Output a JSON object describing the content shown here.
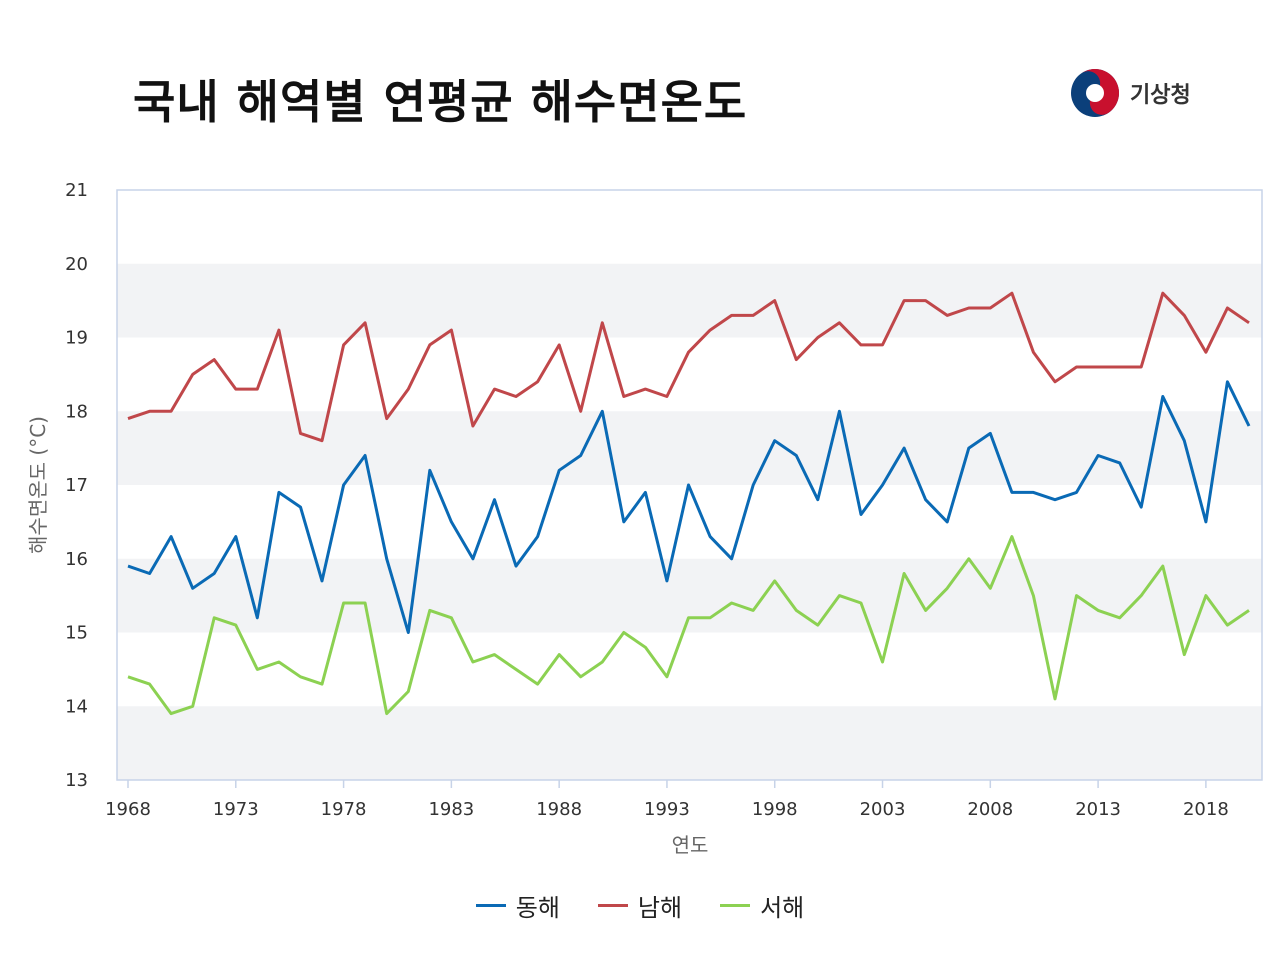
{
  "header": {
    "title": "국내 해역별 연평균 해수면온도",
    "logo_text": "기상청"
  },
  "chart_data": {
    "type": "line",
    "title": "국내 해역별 연평균 해수면온도",
    "xlabel": "연도",
    "ylabel": "해수면온도 (°C)",
    "ylim": [
      13,
      21
    ],
    "yticks": [
      13,
      14,
      15,
      16,
      17,
      18,
      19,
      20,
      21
    ],
    "xticks": [
      1968,
      1973,
      1978,
      1983,
      1988,
      1993,
      1998,
      2003,
      2008,
      2013,
      2018
    ],
    "x": [
      1968,
      1969,
      1970,
      1971,
      1972,
      1973,
      1974,
      1975,
      1976,
      1977,
      1978,
      1979,
      1980,
      1981,
      1982,
      1983,
      1984,
      1985,
      1986,
      1987,
      1988,
      1989,
      1990,
      1991,
      1992,
      1993,
      1994,
      1995,
      1996,
      1997,
      1998,
      1999,
      2000,
      2001,
      2002,
      2003,
      2004,
      2005,
      2006,
      2007,
      2008,
      2009,
      2010,
      2011,
      2012,
      2013,
      2014,
      2015,
      2016,
      2017,
      2018,
      2019,
      2020
    ],
    "legend_position": "bottom",
    "series": [
      {
        "name": "동해",
        "color": "#0a6ab5",
        "values": [
          15.9,
          15.8,
          16.3,
          15.6,
          15.8,
          16.3,
          15.2,
          16.9,
          16.7,
          15.7,
          17.0,
          17.4,
          16.0,
          15.0,
          17.2,
          16.5,
          16.0,
          16.8,
          15.9,
          16.3,
          17.2,
          17.4,
          18.0,
          16.5,
          16.9,
          15.7,
          17.0,
          16.3,
          16.0,
          17.0,
          17.6,
          17.4,
          16.8,
          18.0,
          16.6,
          17.0,
          17.5,
          16.8,
          16.5,
          17.5,
          17.7,
          16.9,
          16.9,
          16.8,
          16.9,
          17.4,
          17.3,
          16.7,
          18.2,
          17.6,
          16.5,
          18.4,
          17.8
        ]
      },
      {
        "name": "남해",
        "color": "#c0474a",
        "values": [
          17.9,
          18.0,
          18.0,
          18.5,
          18.7,
          18.3,
          18.3,
          19.1,
          17.7,
          17.6,
          18.9,
          19.2,
          17.9,
          18.3,
          18.9,
          19.1,
          17.8,
          18.3,
          18.2,
          18.4,
          18.9,
          18.0,
          19.2,
          18.2,
          18.3,
          18.2,
          18.8,
          19.1,
          19.3,
          19.3,
          19.5,
          18.7,
          19.0,
          19.2,
          18.9,
          18.9,
          19.5,
          19.5,
          19.3,
          19.4,
          19.4,
          19.6,
          18.8,
          18.4,
          18.6,
          18.6,
          18.6,
          18.6,
          19.6,
          19.3,
          18.8,
          19.4,
          19.2
        ]
      },
      {
        "name": "서해",
        "color": "#8cd152",
        "values": [
          14.4,
          14.3,
          13.9,
          14.0,
          15.2,
          15.1,
          14.5,
          14.6,
          14.4,
          14.3,
          15.4,
          15.4,
          13.9,
          14.2,
          15.3,
          15.2,
          14.6,
          14.7,
          14.5,
          14.3,
          14.7,
          14.4,
          14.6,
          15.0,
          14.8,
          14.4,
          15.2,
          15.2,
          15.4,
          15.3,
          15.7,
          15.3,
          15.1,
          15.5,
          15.4,
          14.6,
          15.8,
          15.3,
          15.6,
          16.0,
          15.6,
          16.3,
          15.5,
          14.1,
          15.5,
          15.3,
          15.2,
          15.5,
          15.9,
          14.7,
          15.5,
          15.1,
          15.3
        ]
      }
    ]
  }
}
